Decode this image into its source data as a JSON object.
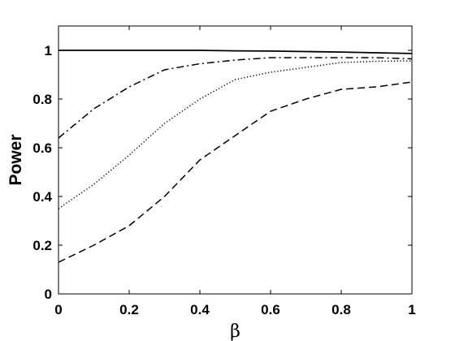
{
  "chart_data": {
    "type": "line",
    "xlabel": "β",
    "ylabel": "Power",
    "xlim": [
      0,
      1
    ],
    "ylim": [
      0,
      1.1
    ],
    "x_ticks": [
      "0",
      "0.2",
      "0.4",
      "0.6",
      "0.8",
      "1"
    ],
    "y_ticks": [
      "0",
      "0.2",
      "0.4",
      "0.6",
      "0.8",
      "1"
    ],
    "grid": false,
    "x": [
      0,
      0.1,
      0.2,
      0.3,
      0.4,
      0.5,
      0.6,
      0.7,
      0.8,
      0.9,
      1.0
    ],
    "series": [
      {
        "style": "solid",
        "color": "#000000",
        "values": [
          1.0,
          1.0,
          1.0,
          1.0,
          1.0,
          0.998,
          0.997,
          0.995,
          0.993,
          0.99,
          0.987
        ]
      },
      {
        "style": "dash-dot",
        "color": "#000000",
        "values": [
          0.64,
          0.76,
          0.85,
          0.92,
          0.945,
          0.96,
          0.97,
          0.97,
          0.97,
          0.97,
          0.965
        ]
      },
      {
        "style": "dotted",
        "color": "#000000",
        "values": [
          0.35,
          0.45,
          0.57,
          0.7,
          0.8,
          0.88,
          0.91,
          0.93,
          0.95,
          0.955,
          0.957
        ]
      },
      {
        "style": "dashed",
        "color": "#000000",
        "values": [
          0.13,
          0.2,
          0.28,
          0.4,
          0.55,
          0.65,
          0.75,
          0.8,
          0.84,
          0.85,
          0.87
        ]
      }
    ]
  }
}
